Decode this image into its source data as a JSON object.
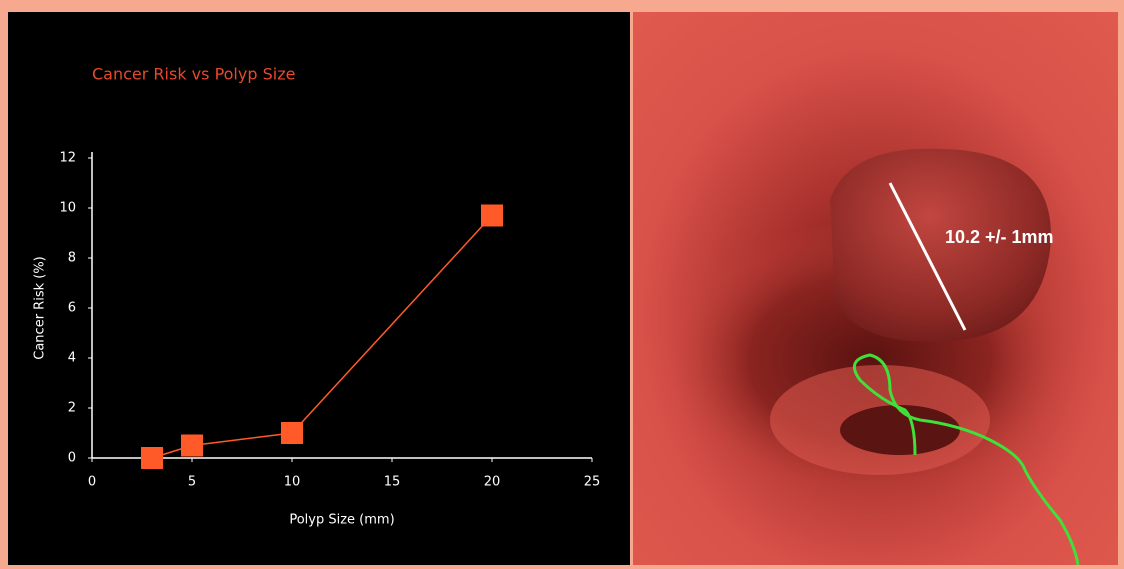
{
  "chart_data": {
    "type": "line",
    "title": "Cancer Risk vs Polyp Size",
    "x_label": "Polyp Size (mm)",
    "y_label": "Cancer Risk (%)",
    "x": [
      3,
      5,
      10,
      20
    ],
    "series": [
      {
        "color": "#ff5a28",
        "values": [
          0,
          0.5,
          1,
          9.7
        ]
      }
    ],
    "xlim": [
      0,
      25
    ],
    "xticks": [
      0,
      5,
      10,
      15,
      20,
      25
    ],
    "ylim": [
      0,
      12
    ],
    "yticks": [
      0,
      2,
      4,
      6,
      8,
      10,
      12
    ],
    "grid": false
  },
  "image": {
    "annotation": "10.2 +/- 1mm"
  }
}
